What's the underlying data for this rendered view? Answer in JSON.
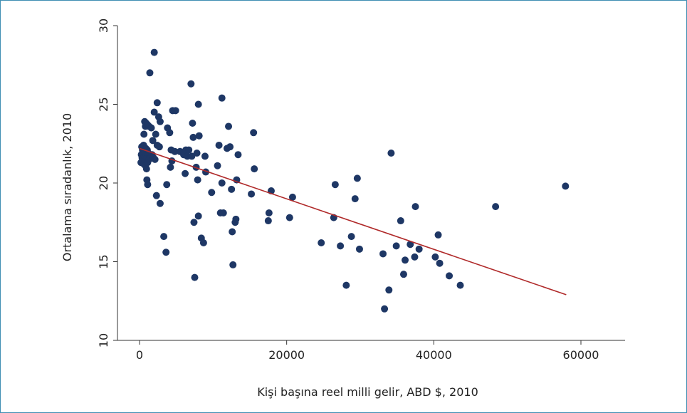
{
  "chart_data": {
    "type": "scatter",
    "title": "",
    "xlabel": "Kişi başına reel milli gelir, ABD $, 2010",
    "ylabel": "Ortalama sıradanlık, 2010",
    "xlim": [
      -3000,
      66000
    ],
    "ylim": [
      10,
      30
    ],
    "x_ticks": [
      0,
      20000,
      40000,
      60000
    ],
    "x_tick_labels": [
      "0",
      "20000",
      "40000",
      "60000"
    ],
    "y_ticks": [
      10,
      15,
      20,
      25,
      30
    ],
    "y_tick_labels": [
      "10",
      "15",
      "20",
      "25",
      "30"
    ],
    "grid": false,
    "legend": "none",
    "colors": {
      "points": "#1e3765",
      "fit_line": "#b02a2a",
      "frame": "#3f8fb3",
      "axis": "#333333"
    },
    "fit_line": {
      "x": [
        0,
        58000
      ],
      "y": [
        22.2,
        12.9
      ]
    },
    "points": [
      [
        200,
        21.3
      ],
      [
        250,
        21.8
      ],
      [
        300,
        22.3
      ],
      [
        350,
        21.6
      ],
      [
        400,
        22.1
      ],
      [
        450,
        21.9
      ],
      [
        500,
        21.5
      ],
      [
        550,
        22.4
      ],
      [
        600,
        21.2
      ],
      [
        650,
        21.7
      ],
      [
        700,
        22.0
      ],
      [
        750,
        21.4
      ],
      [
        800,
        21.1
      ],
      [
        850,
        22.2
      ],
      [
        900,
        21.8
      ],
      [
        950,
        20.9
      ],
      [
        1000,
        21.6
      ],
      [
        1050,
        22.1
      ],
      [
        1100,
        21.3
      ],
      [
        1200,
        21.9
      ],
      [
        1300,
        21.5
      ],
      [
        1400,
        21.7
      ],
      [
        1500,
        21.6
      ],
      [
        1700,
        21.8
      ],
      [
        1900,
        21.6
      ],
      [
        2100,
        21.5
      ],
      [
        600,
        23.1
      ],
      [
        700,
        23.9
      ],
      [
        800,
        23.6
      ],
      [
        900,
        23.8
      ],
      [
        1100,
        23.7
      ],
      [
        1300,
        23.6
      ],
      [
        1000,
        20.2
      ],
      [
        1100,
        19.9
      ],
      [
        1400,
        27.0
      ],
      [
        1600,
        23.5
      ],
      [
        1800,
        22.7
      ],
      [
        2000,
        28.3
      ],
      [
        2000,
        24.5
      ],
      [
        2200,
        23.1
      ],
      [
        2400,
        25.1
      ],
      [
        2400,
        22.4
      ],
      [
        2600,
        24.2
      ],
      [
        2800,
        23.9
      ],
      [
        2700,
        22.3
      ],
      [
        2300,
        19.2
      ],
      [
        2800,
        18.7
      ],
      [
        3300,
        16.6
      ],
      [
        3600,
        15.6
      ],
      [
        3700,
        19.9
      ],
      [
        3800,
        23.5
      ],
      [
        4100,
        23.2
      ],
      [
        4200,
        21.0
      ],
      [
        4300,
        22.1
      ],
      [
        4400,
        21.4
      ],
      [
        4500,
        24.6
      ],
      [
        4800,
        22.0
      ],
      [
        4900,
        24.6
      ],
      [
        5500,
        22.0
      ],
      [
        6000,
        21.8
      ],
      [
        6300,
        22.1
      ],
      [
        6200,
        20.6
      ],
      [
        6500,
        21.7
      ],
      [
        6700,
        22.1
      ],
      [
        7000,
        26.3
      ],
      [
        7100,
        21.7
      ],
      [
        7200,
        23.8
      ],
      [
        7300,
        22.9
      ],
      [
        7400,
        17.5
      ],
      [
        7500,
        14.0
      ],
      [
        7700,
        21.0
      ],
      [
        7800,
        21.9
      ],
      [
        7900,
        20.2
      ],
      [
        8000,
        25.0
      ],
      [
        8000,
        17.9
      ],
      [
        8100,
        23.0
      ],
      [
        8400,
        16.5
      ],
      [
        8700,
        16.2
      ],
      [
        8900,
        21.7
      ],
      [
        9000,
        20.7
      ],
      [
        9800,
        19.4
      ],
      [
        10600,
        21.1
      ],
      [
        10800,
        22.4
      ],
      [
        11000,
        18.1
      ],
      [
        11200,
        20.0
      ],
      [
        11200,
        25.4
      ],
      [
        11400,
        18.1
      ],
      [
        11900,
        22.2
      ],
      [
        12100,
        23.6
      ],
      [
        12300,
        22.3
      ],
      [
        12500,
        19.6
      ],
      [
        12600,
        16.9
      ],
      [
        12700,
        14.8
      ],
      [
        13000,
        17.5
      ],
      [
        13100,
        17.7
      ],
      [
        13200,
        20.2
      ],
      [
        13400,
        21.8
      ],
      [
        15200,
        19.3
      ],
      [
        15500,
        23.2
      ],
      [
        15600,
        20.9
      ],
      [
        17500,
        17.6
      ],
      [
        17600,
        18.1
      ],
      [
        17900,
        19.5
      ],
      [
        20400,
        17.8
      ],
      [
        20800,
        19.1
      ],
      [
        24700,
        16.2
      ],
      [
        26400,
        17.8
      ],
      [
        26600,
        19.9
      ],
      [
        27300,
        16.0
      ],
      [
        28100,
        13.5
      ],
      [
        28800,
        16.6
      ],
      [
        29300,
        19.0
      ],
      [
        29600,
        20.3
      ],
      [
        29900,
        15.8
      ],
      [
        33100,
        15.5
      ],
      [
        33300,
        12.0
      ],
      [
        33900,
        13.2
      ],
      [
        34200,
        21.9
      ],
      [
        34900,
        16.0
      ],
      [
        35500,
        17.6
      ],
      [
        35900,
        14.2
      ],
      [
        36100,
        15.1
      ],
      [
        36800,
        16.1
      ],
      [
        37400,
        15.3
      ],
      [
        37500,
        18.5
      ],
      [
        38000,
        15.8
      ],
      [
        40200,
        15.3
      ],
      [
        40600,
        16.7
      ],
      [
        40800,
        14.9
      ],
      [
        42100,
        14.1
      ],
      [
        43600,
        13.5
      ],
      [
        48400,
        18.5
      ],
      [
        57900,
        19.8
      ]
    ]
  }
}
